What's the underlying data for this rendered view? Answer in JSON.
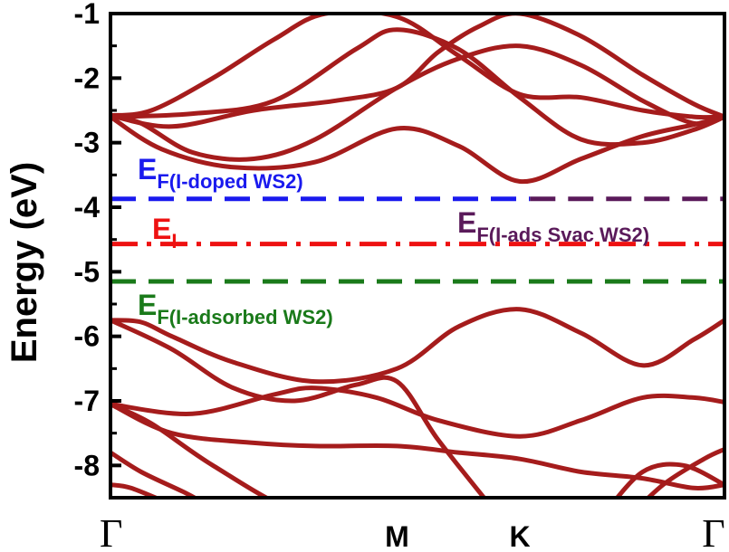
{
  "chart_data": {
    "type": "line",
    "title": "",
    "xlabel": "",
    "ylabel": "Energy (eV)",
    "ylim": [
      -8.5,
      -1
    ],
    "xlim": [
      0,
      3
    ],
    "grid": false,
    "legend": "none",
    "band_color": "#a51c1c",
    "y_ticks": [
      -1,
      -2,
      -3,
      -4,
      -5,
      -6,
      -7,
      -8
    ],
    "x_ticks": [
      {
        "x": 0,
        "label": "Γ"
      },
      {
        "x": 1.4,
        "label": "M"
      },
      {
        "x": 2.0,
        "label": "K"
      },
      {
        "x": 3.0,
        "label": "Γ"
      }
    ],
    "reference_levels": [
      {
        "main": "E",
        "sub": "F(I-doped WS2)",
        "y": -3.87,
        "color": "#1a1aee",
        "style": "dashed"
      },
      {
        "main": "E",
        "sub": "F(I-ads Svac WS2)",
        "y": -3.87,
        "color": "#5a1a5a",
        "style": "dashed"
      },
      {
        "main": "E",
        "sub": "I",
        "y": -4.57,
        "color": "#ee1111",
        "style": "dashdot"
      },
      {
        "main": "E",
        "sub": "F(I-adsorbed WS2)",
        "y": -5.15,
        "color": "#1a7a1a",
        "style": "dashed"
      }
    ],
    "series": [
      {
        "x": [
          0,
          0.15,
          0.4,
          0.7,
          1.0,
          1.4,
          1.7,
          2.0,
          2.3,
          2.6,
          2.85,
          3.0
        ],
        "y": [
          -2.58,
          -2.7,
          -3.15,
          -3.25,
          -2.95,
          -2.15,
          -1.7,
          -1.5,
          -1.8,
          -2.35,
          -2.7,
          -2.6
        ]
      },
      {
        "x": [
          0,
          0.2,
          0.5,
          0.8,
          1.05,
          1.4,
          1.7,
          2.0,
          2.3,
          2.6,
          2.85,
          3.0
        ],
        "y": [
          -2.58,
          -2.5,
          -2.0,
          -1.4,
          -1.0,
          -1.05,
          -1.65,
          -2.25,
          -2.3,
          -2.5,
          -2.6,
          -2.6
        ]
      },
      {
        "x": [
          0,
          0.25,
          0.6,
          1.0,
          1.4,
          1.7,
          2.0,
          2.3,
          2.6,
          2.85,
          3.0
        ],
        "y": [
          -2.6,
          -3.1,
          -3.38,
          -3.3,
          -2.78,
          -3.05,
          -3.6,
          -3.25,
          -2.9,
          -2.72,
          -2.6
        ]
      },
      {
        "x": [
          0,
          0.3,
          0.7,
          1.1,
          1.4,
          1.6,
          1.8,
          2.0,
          2.3,
          2.6,
          2.85,
          3.0
        ],
        "y": [
          -2.58,
          -2.75,
          -2.5,
          -2.35,
          -2.15,
          -1.6,
          -1.2,
          -1.0,
          -1.35,
          -1.95,
          -2.4,
          -2.6
        ]
      },
      {
        "x": [
          0,
          0.4,
          0.8,
          1.2,
          1.4,
          1.7,
          2.0,
          2.3,
          2.6,
          2.85,
          3.0
        ],
        "y": [
          -2.6,
          -2.55,
          -2.35,
          -1.55,
          -1.25,
          -1.55,
          -2.3,
          -2.95,
          -3.0,
          -2.8,
          -2.6
        ]
      },
      {
        "x": [
          0,
          0.15,
          0.3,
          0.6,
          1.0,
          1.4,
          1.7,
          2.0,
          2.3,
          2.6,
          2.85,
          3.0
        ],
        "y": [
          -5.75,
          -5.78,
          -6.0,
          -6.4,
          -6.7,
          -6.5,
          -5.85,
          -5.58,
          -5.95,
          -6.45,
          -6.05,
          -5.75
        ]
      },
      {
        "x": [
          0,
          0.3,
          0.6,
          0.9,
          1.2,
          1.4,
          1.6,
          1.85
        ],
        "y": [
          -5.75,
          -6.2,
          -6.8,
          -7.0,
          -6.75,
          -6.7,
          -7.6,
          -8.6
        ]
      },
      {
        "x": [
          0,
          0.4,
          0.8,
          1.0,
          1.3,
          1.6,
          2.0,
          2.3,
          2.6,
          2.85,
          3.0
        ],
        "y": [
          -7.05,
          -7.2,
          -6.9,
          -6.8,
          -6.95,
          -7.3,
          -7.55,
          -7.3,
          -6.95,
          -6.95,
          -7.02
        ]
      },
      {
        "x": [
          0,
          0.3,
          0.7,
          1.0,
          1.4,
          1.7,
          2.0,
          2.3,
          2.6,
          2.85,
          3.0
        ],
        "y": [
          -7.05,
          -7.5,
          -7.65,
          -7.7,
          -7.7,
          -7.8,
          -7.9,
          -8.1,
          -8.2,
          -8.35,
          -8.3
        ]
      },
      {
        "x": [
          0,
          0.2,
          0.5,
          0.9,
          1.2,
          1.45
        ],
        "y": [
          -7.05,
          -7.35,
          -8.0,
          -8.7,
          -8.7,
          -8.7
        ]
      },
      {
        "x": [
          0,
          0.15,
          0.35,
          0.55,
          0.8
        ],
        "y": [
          -7.8,
          -8.1,
          -8.4,
          -8.7,
          -8.8
        ]
      },
      {
        "x": [
          0,
          0.1,
          0.3,
          0.5
        ],
        "y": [
          -8.3,
          -8.35,
          -8.6,
          -8.8
        ]
      },
      {
        "x": [
          2.4,
          2.6,
          2.8,
          3.0
        ],
        "y": [
          -8.8,
          -8.1,
          -8.0,
          -8.3
        ]
      },
      {
        "x": [
          2.5,
          2.7,
          2.9,
          3.0
        ],
        "y": [
          -8.9,
          -8.3,
          -7.9,
          -7.75
        ]
      }
    ]
  }
}
